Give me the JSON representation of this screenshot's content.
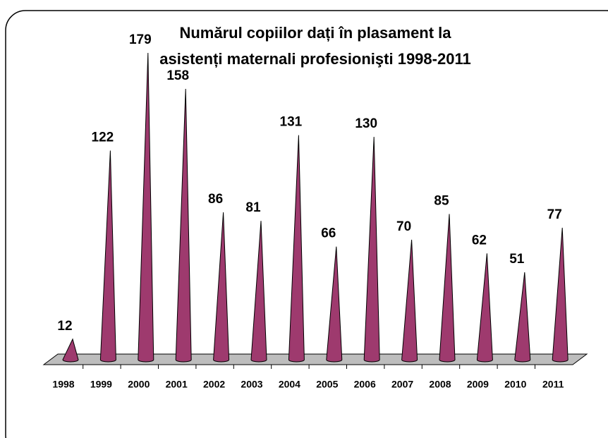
{
  "chart_data": {
    "type": "cone",
    "title": "Numărul copiilor dați în plasament la asistenți maternali profesionişti 1998-2011",
    "categories": [
      "1998",
      "1999",
      "2000",
      "2001",
      "2002",
      "2003",
      "2004",
      "2005",
      "2006",
      "2007",
      "2008",
      "2009",
      "2010",
      "2011"
    ],
    "values": [
      12,
      122,
      179,
      158,
      86,
      81,
      131,
      66,
      130,
      70,
      85,
      62,
      51,
      77
    ],
    "color": "#9e3a6e"
  }
}
